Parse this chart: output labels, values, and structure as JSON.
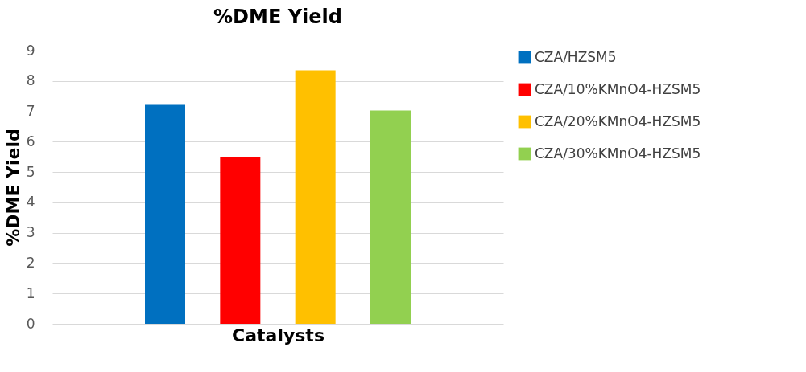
{
  "chart_data": {
    "type": "bar",
    "title": "%DME Yield",
    "xlabel": "Catalysts",
    "ylabel": "%DME Yield",
    "categories": [
      null
    ],
    "series": [
      {
        "name": "CZA/HZSM5",
        "color": "#0070c0",
        "values": [
          7.21
        ]
      },
      {
        "name": "CZA/10%KMnO4-HZSM5",
        "color": "#ff0000",
        "values": [
          5.48
        ]
      },
      {
        "name": "CZA/20%KMnO4-HZSM5",
        "color": "#ffc000",
        "values": [
          8.35
        ]
      },
      {
        "name": "CZA/30%KMnO4-HZSM5",
        "color": "#92d050",
        "values": [
          7.03
        ]
      }
    ],
    "ylim": [
      0,
      9
    ],
    "yticks": [
      0,
      1,
      2,
      3,
      4,
      5,
      6,
      7,
      8,
      9
    ],
    "grid": "y",
    "legend": "right",
    "tick_labels": "y"
  }
}
